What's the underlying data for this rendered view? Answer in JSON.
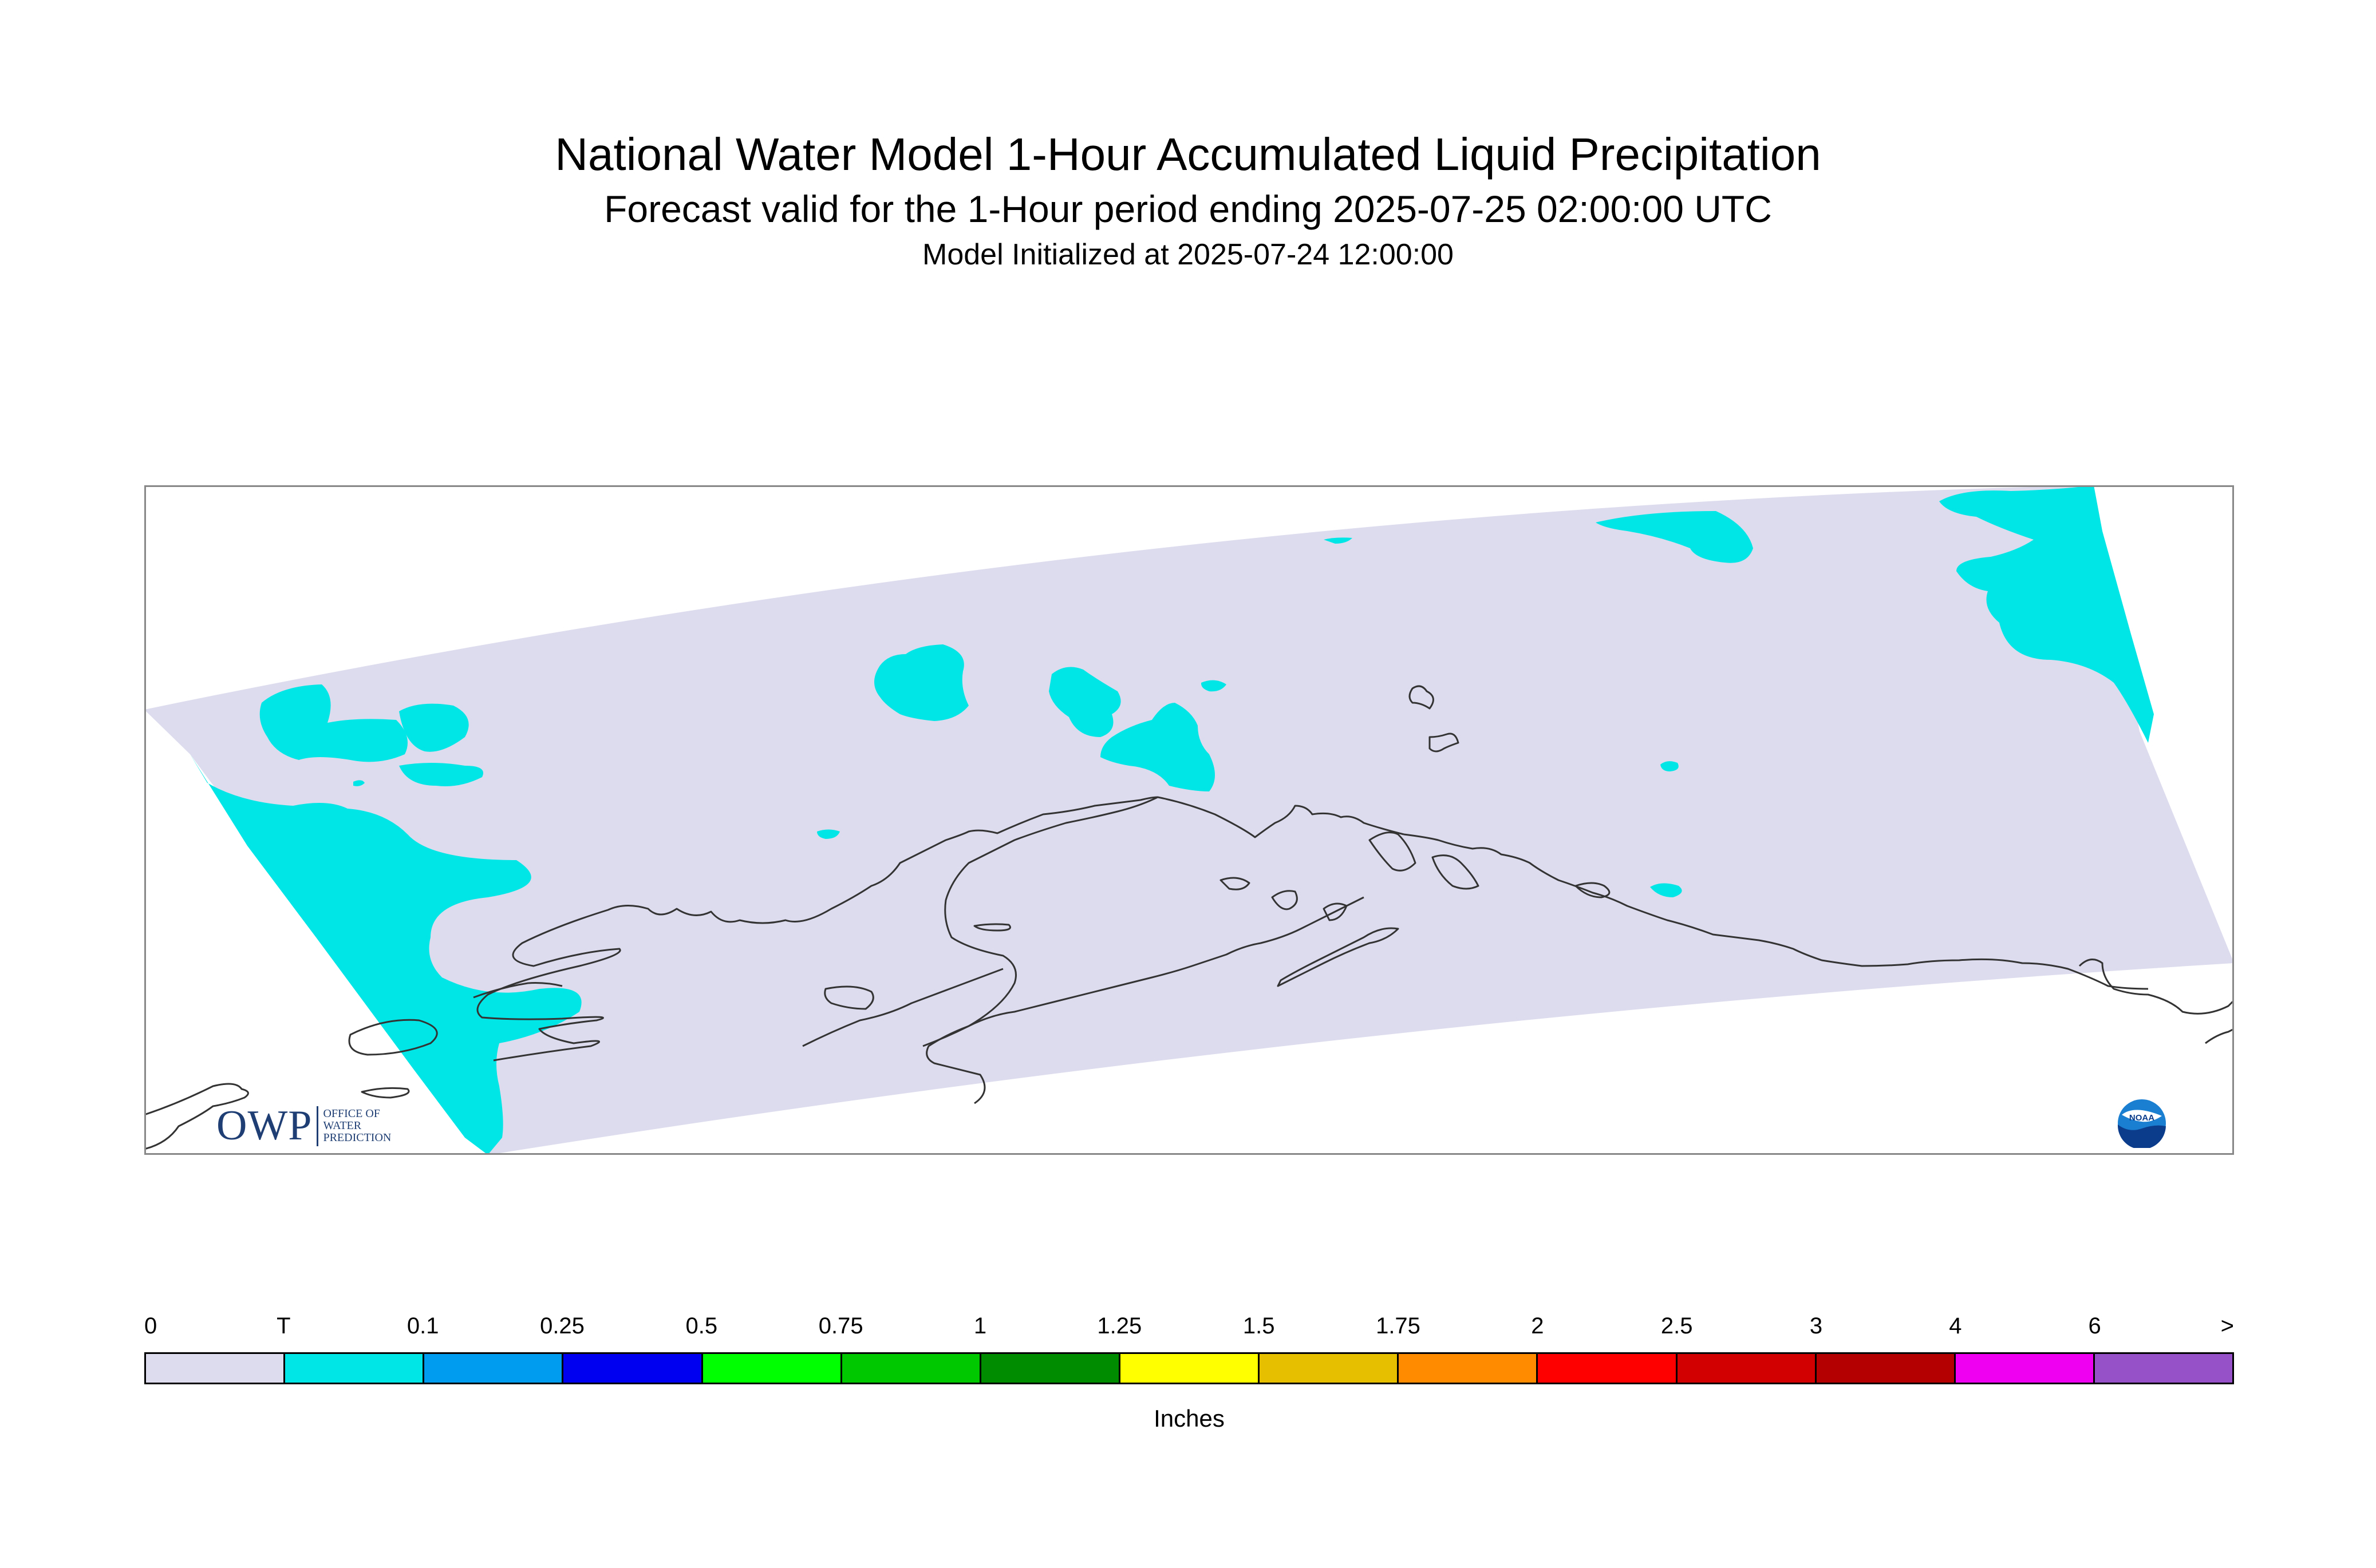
{
  "header": {
    "title": "National Water Model 1-Hour Accumulated Liquid Precipitation",
    "subtitle": "Forecast valid for the 1-Hour period ending 2025-07-25 02:00:00 UTC",
    "init_line": "Model Initialized at 2025-07-24 12:00:00"
  },
  "map": {
    "region": "Alaska",
    "domain_fill_color": "#dcdcee",
    "precip_fill_color": "#00e6e6",
    "coastline_color": "#333333"
  },
  "logos": {
    "owp": {
      "big_text": "OWP",
      "small_lines": [
        "OFFICE OF",
        "WATER",
        "PREDICTION"
      ]
    },
    "noaa": {
      "text": "NOAA",
      "icon": "noaa-emblem-icon"
    }
  },
  "legend": {
    "tick_labels": [
      "0",
      "T",
      "0.1",
      "0.25",
      "0.5",
      "0.75",
      "1",
      "1.25",
      "1.5",
      "1.75",
      "2",
      "2.5",
      "3",
      "4",
      "6",
      ">"
    ],
    "colors": [
      "#dcdcee",
      "#00e6e6",
      "#009cf0",
      "#0000f0",
      "#00ff00",
      "#00c800",
      "#008c00",
      "#ffff00",
      "#e6c000",
      "#ff8c00",
      "#ff0000",
      "#d20000",
      "#b40000",
      "#f000f0",
      "#9650c8"
    ],
    "units": "Inches"
  }
}
